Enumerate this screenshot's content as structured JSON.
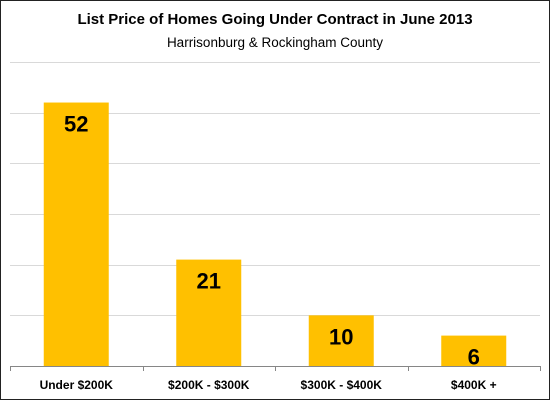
{
  "chart_data": {
    "type": "bar",
    "title": "List Price of Homes Going Under Contract in June 2013",
    "subtitle": "Harrisonburg  & Rockingham County",
    "categories": [
      "Under $200K",
      "$200K - $300K",
      "$300K - $400K",
      "$400K +"
    ],
    "values": [
      52,
      21,
      10,
      6
    ],
    "xlabel": "",
    "ylabel": "",
    "ylim": [
      0,
      60
    ],
    "grid": true,
    "legend": "none",
    "data_labels": true,
    "bar_color": "#FFC000",
    "grid_color": "#D9D9D9",
    "axis_color": "#868686"
  }
}
